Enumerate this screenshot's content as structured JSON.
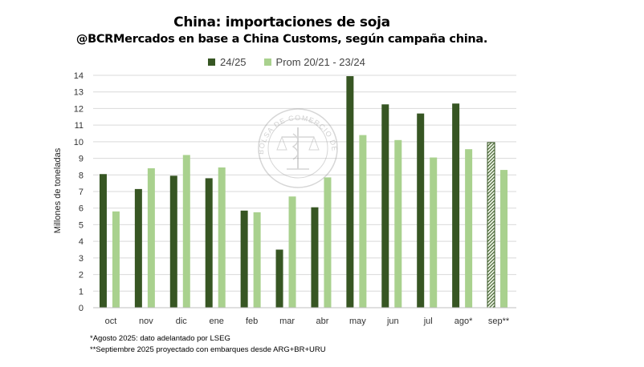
{
  "title": "China: importaciones de soja",
  "subtitle": "@BCRMercados en base a China Customs, según campaña china.",
  "notes": [
    "*Agosto 2025: dato adelantado por LSEG",
    "**Septiembre  2025 proyectado con embarques desde ARG+BR+URU"
  ],
  "watermark": "BOLSA DE COMERCIO DE ROSARIO",
  "colors": {
    "series1": "#375623",
    "series2": "#a9d18e",
    "grid": "#d9d9d9",
    "axis": "#595959"
  },
  "chart_data": {
    "type": "bar",
    "ylabel": "Millones de toneladas",
    "ylim": [
      0,
      14
    ],
    "yticks": [
      "0",
      "1",
      "2",
      "3",
      "4",
      "5",
      "6",
      "7",
      "8",
      "9",
      "10",
      "11",
      "12",
      "13",
      "14"
    ],
    "grid": true,
    "legend_position": "top",
    "categories": [
      "oct",
      "nov",
      "dic",
      "ene",
      "feb",
      "mar",
      "abr",
      "may",
      "jun",
      "jul",
      "ago*",
      "sep**"
    ],
    "series": [
      {
        "name": "24/25",
        "values": [
          8.05,
          7.15,
          7.95,
          7.8,
          5.85,
          3.5,
          6.05,
          13.95,
          12.25,
          11.7,
          12.3,
          9.95
        ]
      },
      {
        "name": "Prom 20/21 - 23/24",
        "values": [
          5.8,
          8.4,
          9.2,
          8.45,
          5.75,
          6.7,
          7.85,
          10.4,
          10.1,
          9.05,
          9.55,
          8.3
        ]
      }
    ],
    "hatched_categories": [
      "sep**"
    ]
  }
}
